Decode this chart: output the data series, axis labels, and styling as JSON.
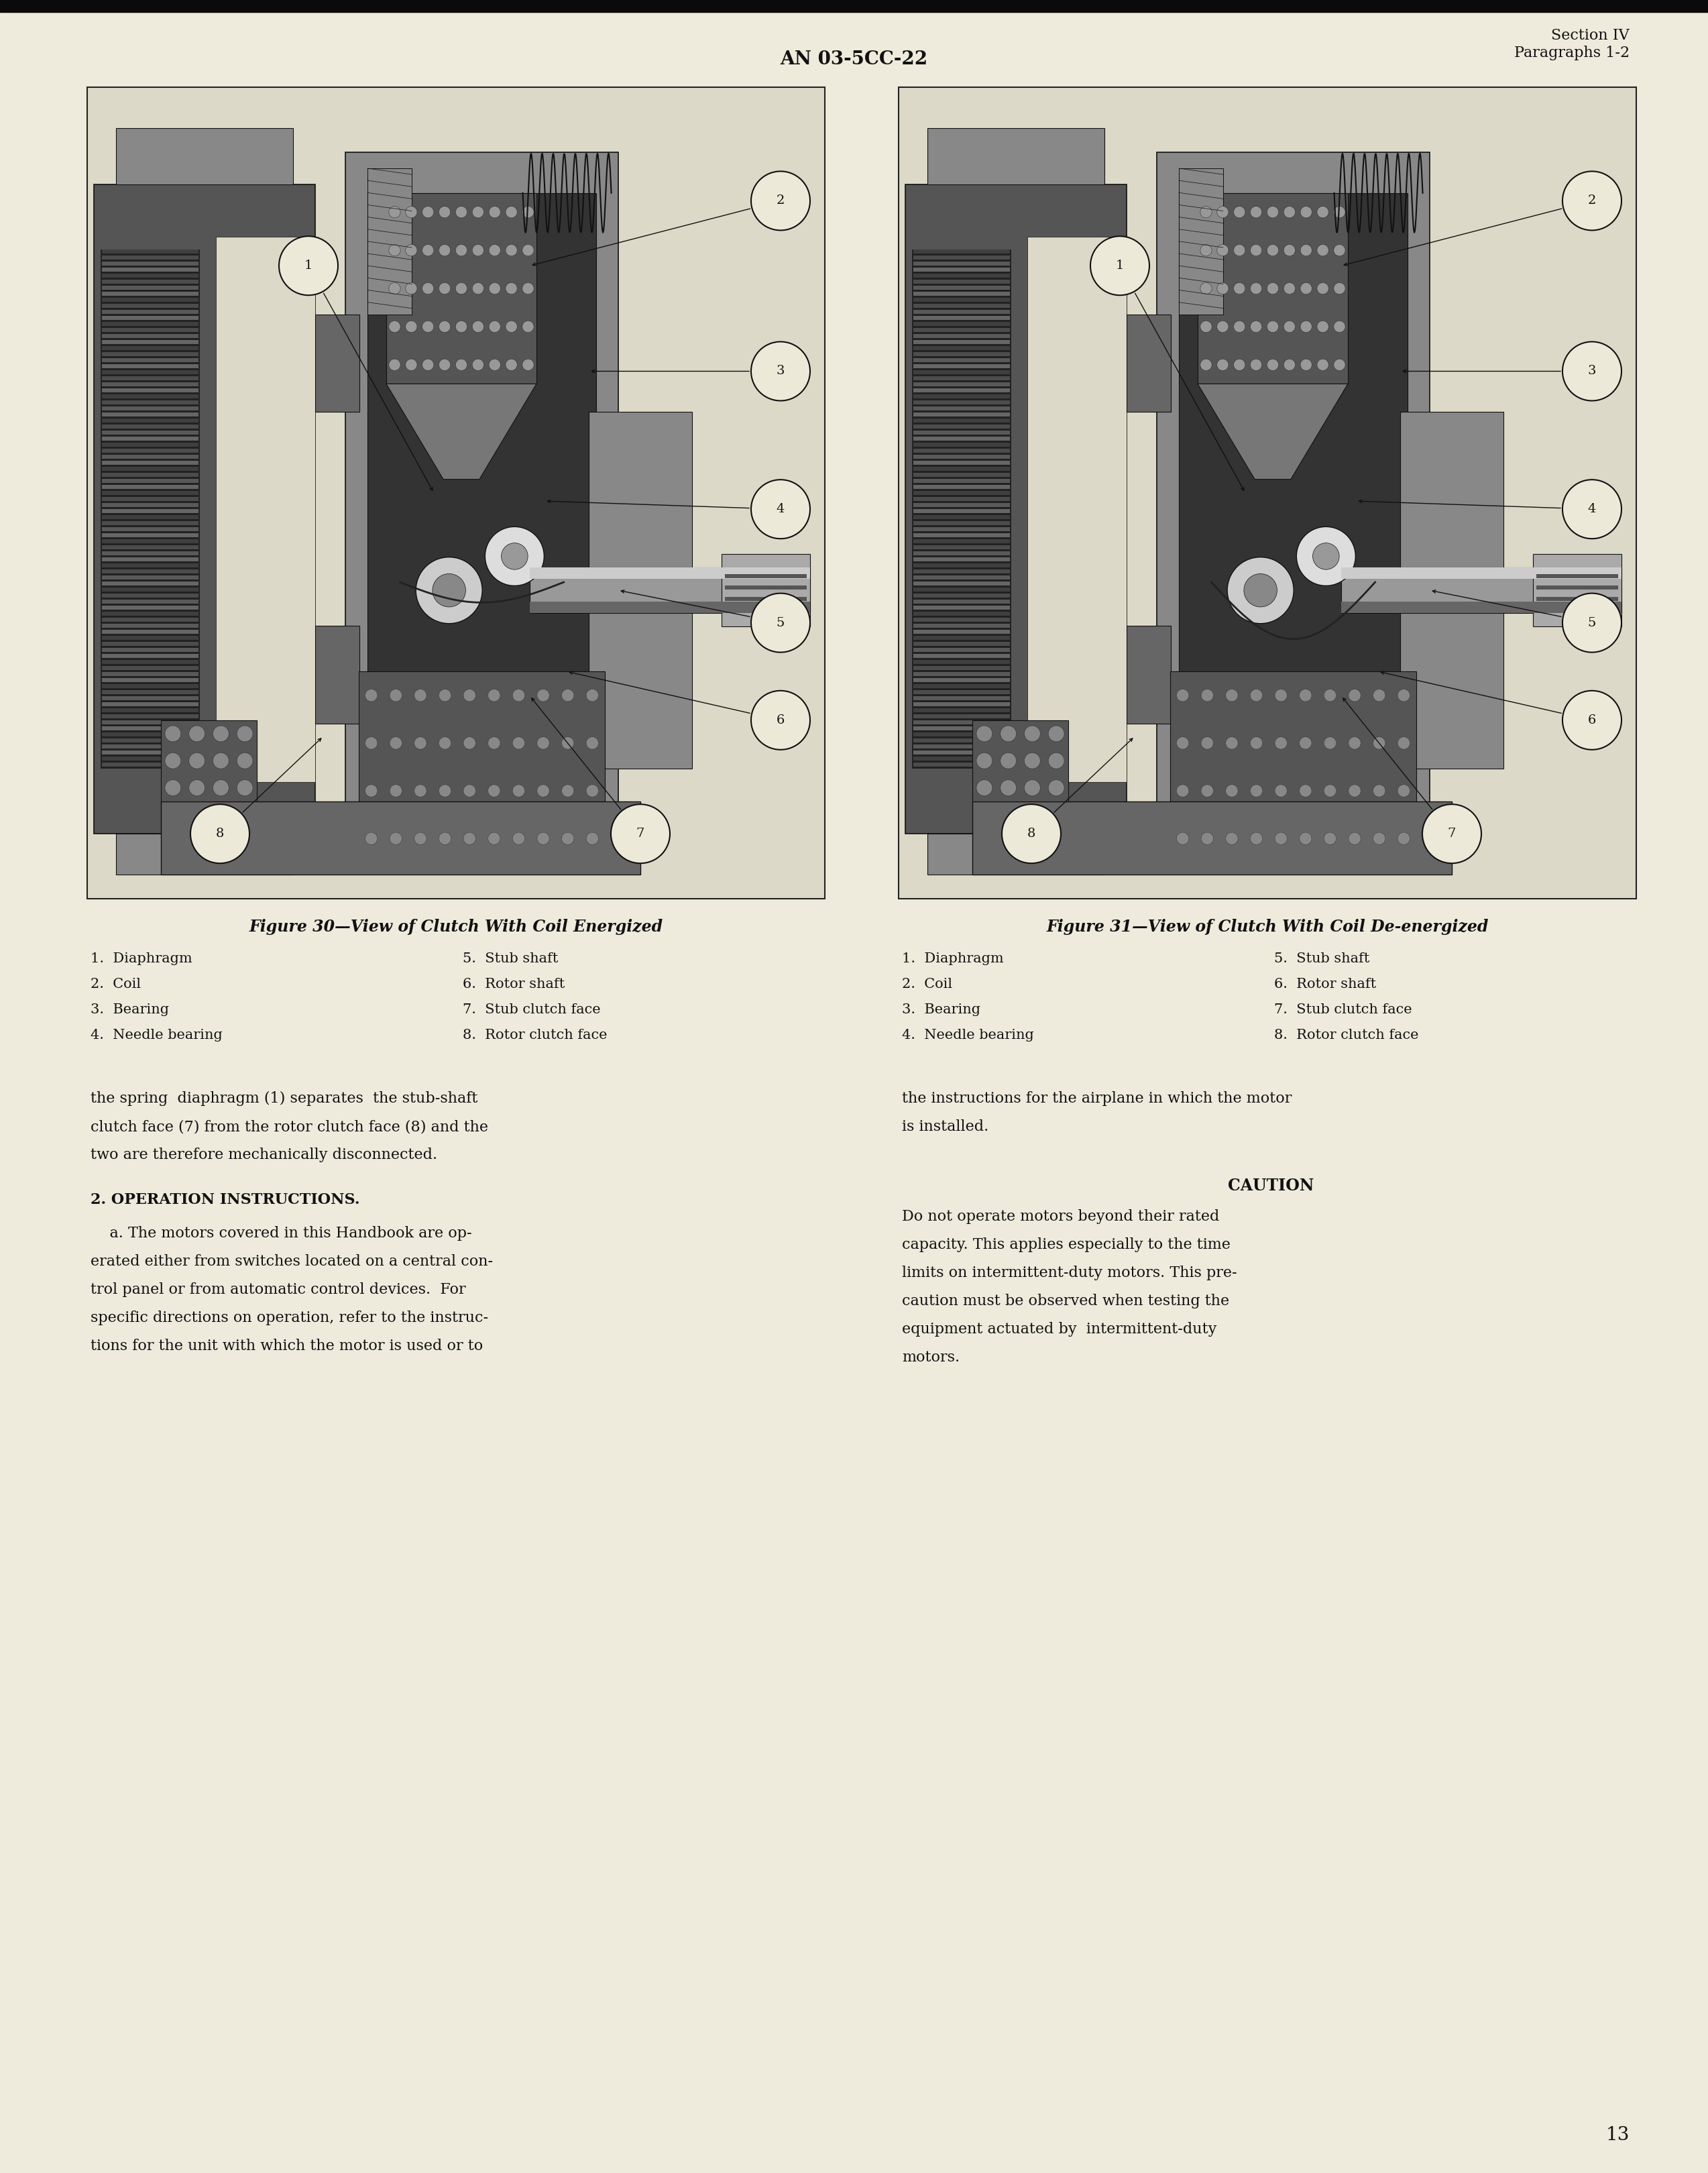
{
  "page_bg": "#f0ede0",
  "page_bg_scan": "#f2efe2",
  "header_center": "AN 03-5CC-22",
  "header_right_line1": "Section IV",
  "header_right_line2": "Paragraphs 1-2",
  "page_number": "13",
  "fig30_title": "Figure 30—View of Clutch With Coil Energized",
  "fig31_title": "Figure 31—View of Clutch With Coil De-energized",
  "legend_left_col1": [
    "1.  Diaphragm",
    "2.  Coil",
    "3.  Bearing",
    "4.  Needle bearing"
  ],
  "legend_left_col2": [
    "5.  Stub shaft",
    "6.  Rotor shaft",
    "7.  Stub clutch face",
    "8.  Rotor clutch face"
  ],
  "legend_right_col1": [
    "1.  Diaphragm",
    "2.  Coil",
    "3.  Bearing",
    "4.  Needle bearing"
  ],
  "legend_right_col2": [
    "5.  Stub shaft",
    "6.  Rotor shaft",
    "7.  Stub clutch face",
    "8.  Rotor clutch face"
  ],
  "body_left_para1": "the spring  diaphragm (1) separates  the stub-shaft\nclutch face (7) from the rotor clutch face (8) and the\ntwo are therefore mechanically disconnected.",
  "section2_heading": "2. OPERATION INSTRUCTIONS.",
  "section2_body": "    a. The motors covered in this Handbook are op-\nerated either from switches located on a central con-\ntrol panel or from automatic control devices.  For\nspecific directions on operation, refer to the instruc-\ntions for the unit with which the motor is used or to",
  "body_right_para1": "the instructions for the airplane in which the motor\nis installed.",
  "caution_heading": "CAUTION",
  "caution_body": "Do not operate motors beyond their rated\ncapacity. This applies especially to the time\nlimits on intermittent-duty motors. This pre-\ncaution must be observed when testing the\nequipment actuated by  intermittent-duty\nmotors.",
  "text_color": "#111111",
  "font_family": "DejaVu Serif"
}
